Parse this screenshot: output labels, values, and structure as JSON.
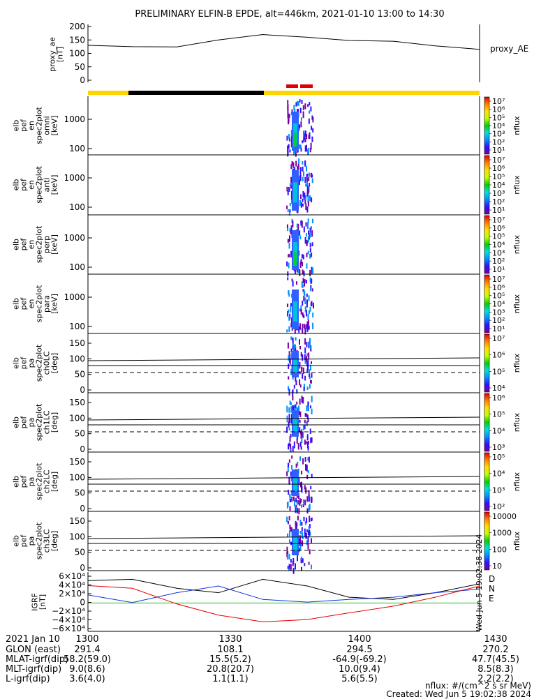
{
  "title": "PRELIMINARY ELFIN-B EPDE, alt=446km, 2021-01-10 13:00 to 14:30",
  "colors": {
    "sunlight_bar": "#FFD400",
    "eclipse_bar": "#000000",
    "science_bar": "#E00000",
    "igrf_d": "#000000",
    "igrf_n": "#1030E0",
    "igrf_e": "#20C020"
  },
  "chart_data": [
    {
      "id": "proxy_ae",
      "type": "line",
      "ylabel": "proxy_ae\n[nT]",
      "legend": "proxy_AE",
      "ylim": [
        0,
        200
      ],
      "yticks": [
        "200",
        "150",
        "100",
        "50",
        "0"
      ],
      "x": [
        13.0,
        13.17,
        13.34,
        13.5,
        13.67,
        13.84,
        14.0,
        14.17,
        14.33,
        14.5
      ],
      "values": [
        130,
        125,
        124,
        150,
        170,
        160,
        148,
        145,
        128,
        115
      ]
    },
    {
      "id": "spec_omni",
      "type": "heatmap",
      "ylabel": "elb\npef\nen\nspec2plot\nomni\n[keV]",
      "yticks": [
        "1000",
        "100"
      ],
      "cbar_label": "nflux",
      "cbar_ticks": [
        "10⁷",
        "10⁶",
        "10⁵",
        "10⁴",
        "10³",
        "10²",
        "10¹"
      ]
    },
    {
      "id": "spec_anti",
      "type": "heatmap",
      "ylabel": "elb\npef\nen\nspec2plot\nanti\n[keV]",
      "yticks": [
        "1000",
        "100"
      ],
      "cbar_label": "nflux",
      "cbar_ticks": [
        "10⁷",
        "10⁶",
        "10⁵",
        "10⁴",
        "10³",
        "10²",
        "10¹"
      ]
    },
    {
      "id": "spec_perp",
      "type": "heatmap",
      "ylabel": "elb\npef\nen\nspec2plot\nperp\n[keV]",
      "yticks": [
        "1000",
        "100"
      ],
      "cbar_label": "nflux",
      "cbar_ticks": [
        "10⁷",
        "10⁶",
        "10⁵",
        "10⁴",
        "10³",
        "10²",
        "10¹"
      ]
    },
    {
      "id": "spec_para",
      "type": "heatmap",
      "ylabel": "elb\npef\nen\nspec2plot\npara\n[keV]",
      "yticks": [
        "1000",
        "100"
      ],
      "cbar_label": "nflux",
      "cbar_ticks": [
        "10⁷",
        "10⁶",
        "10⁵",
        "10⁴",
        "10³",
        "10²",
        "10¹"
      ]
    },
    {
      "id": "pa_ch0",
      "type": "heatmap",
      "ylabel": "elb\npef\npa\nspec2plot\nch0LC\n[deg]",
      "yticks": [
        "150",
        "100",
        "50",
        "0"
      ],
      "cbar_label": "nflux",
      "cbar_ticks": [
        "10⁷",
        "10⁶",
        "10⁵",
        "10⁴"
      ]
    },
    {
      "id": "pa_ch1",
      "type": "heatmap",
      "ylabel": "elb\npef\npa\nspec2plot\nch1LC\n[deg]",
      "yticks": [
        "150",
        "100",
        "50",
        "0"
      ],
      "cbar_label": "nflux",
      "cbar_ticks": [
        "10⁶",
        "10⁵",
        "10⁴",
        "10³"
      ]
    },
    {
      "id": "pa_ch2",
      "type": "heatmap",
      "ylabel": "elb\npef\npa\nspec2plot\nch2LC\n[deg]",
      "yticks": [
        "150",
        "100",
        "50",
        "0"
      ],
      "cbar_label": "nflux",
      "cbar_ticks": [
        "10⁵",
        "10⁴",
        "10³",
        "10²"
      ]
    },
    {
      "id": "pa_ch3",
      "type": "heatmap",
      "ylabel": "elb\npef\npa\nspec2plot\nch3LC\n[deg]",
      "yticks": [
        "150",
        "100",
        "50",
        "0"
      ],
      "cbar_label": "nflux",
      "cbar_ticks": [
        "10000",
        "1000",
        "100",
        "10"
      ]
    },
    {
      "id": "igrf",
      "type": "line",
      "ylabel": "IGRF\n[nT]",
      "ylim": [
        -60000,
        60000
      ],
      "yticks": [
        "6×10⁴",
        "4×10⁴",
        "2×10⁴",
        "0",
        "−2×10⁴",
        "−4×10⁴",
        "−6×10⁴"
      ],
      "x": [
        13.0,
        13.17,
        13.34,
        13.5,
        13.67,
        13.84,
        14.0,
        14.17,
        14.33,
        14.5
      ],
      "series": [
        {
          "name": "D",
          "values": [
            47000,
            50000,
            30000,
            20000,
            50000,
            35000,
            10000,
            5000,
            20000,
            40000
          ]
        },
        {
          "name": "N",
          "values": [
            15000,
            -2000,
            20000,
            35000,
            5000,
            -1000,
            5000,
            10000,
            20000,
            28000
          ]
        },
        {
          "name": "E",
          "values": [
            -3000,
            -3000,
            -3000,
            -3000,
            -3000,
            -3000,
            -3000,
            -3000,
            -3000,
            -3000
          ]
        }
      ]
    }
  ],
  "time_axis": {
    "row_label": "2021 Jan 10",
    "ticks": [
      "1300",
      "1330",
      "1400",
      "1430"
    ],
    "rows": [
      {
        "label": "GLON (east)",
        "values": [
          "291.4",
          "108.1",
          "294.5",
          "270.2"
        ]
      },
      {
        "label": "MLAT-igrf(dip)",
        "values": [
          "58.2(59.0)",
          "15.5(5.2)",
          "-64.9(-69.2)",
          "47.7(45.5)"
        ]
      },
      {
        "label": "MLT-igrf(dip)",
        "values": [
          "9.0(8.6)",
          "20.8(20.7)",
          "10.0(9.4)",
          "8.5(8.3)"
        ]
      },
      {
        "label": "L-igrf(dip)",
        "values": [
          "3.6(4.0)",
          "1.1(1.1)",
          "5.6(5.5)",
          "2.2(2.2)"
        ]
      }
    ]
  },
  "footer": {
    "units": "nflux: #/(cm^2 s sr MeV)",
    "created": "Created: Wed Jun  5 19:02:38 2024",
    "stamp": "Wed Jun  5 19:02:38 2024"
  }
}
